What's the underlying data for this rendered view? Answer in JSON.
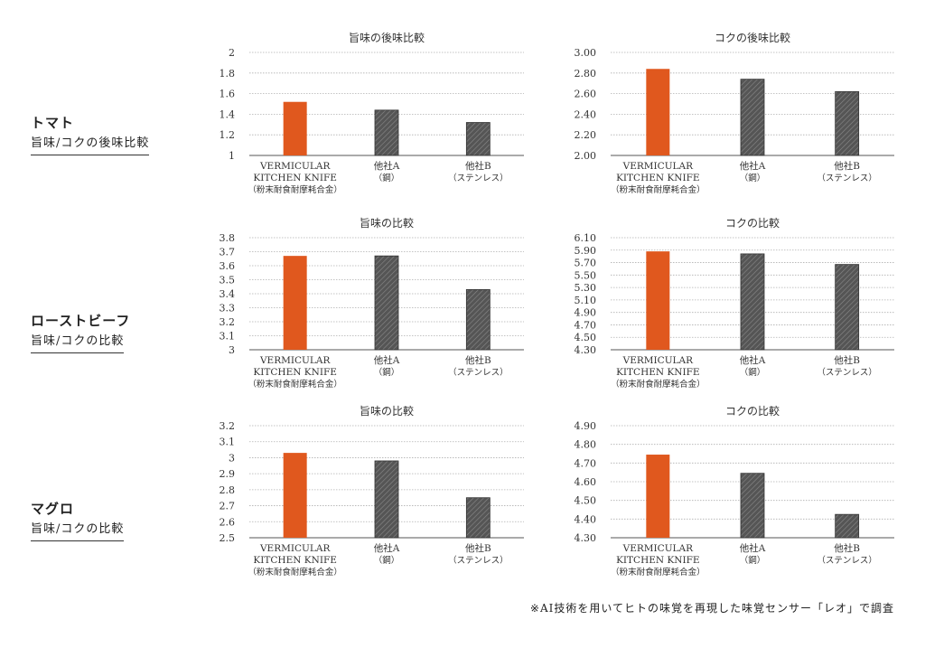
{
  "rows": [
    {
      "food": "トマト",
      "subtitle": "旨味/コクの後味比較"
    },
    {
      "food": "ローストビーフ",
      "subtitle": "旨味/コクの比較"
    },
    {
      "food": "マグロ",
      "subtitle": "旨味/コクの比較"
    }
  ],
  "categories": [
    [
      "VERMICULAR",
      "KITCHEN KNIFE",
      "（粉末耐食耐摩耗合金）"
    ],
    [
      "他社A",
      "（鋼）"
    ],
    [
      "他社B",
      "（ステンレス）"
    ]
  ],
  "colors": {
    "highlight": "#e0581e",
    "competitor": "#555555",
    "grid": "#b0b0b0"
  },
  "chart_data": [
    {
      "type": "bar",
      "title": "旨味の後味比較",
      "ylim": [
        1,
        2
      ],
      "yticks": [
        "1",
        "1.2",
        "1.4",
        "1.6",
        "1.8",
        "2"
      ],
      "values": [
        1.52,
        1.44,
        1.32
      ]
    },
    {
      "type": "bar",
      "title": "コクの後味比較",
      "ylim": [
        2.0,
        3.0
      ],
      "yticks": [
        "2.00",
        "2.20",
        "2.40",
        "2.60",
        "2.80",
        "3.00"
      ],
      "values": [
        2.84,
        2.74,
        2.62
      ]
    },
    {
      "type": "bar",
      "title": "旨味の比較",
      "ylim": [
        3,
        3.8
      ],
      "yticks": [
        "3",
        "3.1",
        "3.2",
        "3.3",
        "3.4",
        "3.5",
        "3.6",
        "3.7",
        "3.8"
      ],
      "values": [
        3.67,
        3.67,
        3.43
      ]
    },
    {
      "type": "bar",
      "title": "コクの比較",
      "ylim": [
        4.3,
        6.1
      ],
      "yticks": [
        "4.30",
        "4.50",
        "4.70",
        "4.90",
        "5.10",
        "5.30",
        "5.50",
        "5.70",
        "5.90",
        "6.10"
      ],
      "values": [
        5.88,
        5.84,
        5.67
      ]
    },
    {
      "type": "bar",
      "title": "旨味の比較",
      "ylim": [
        2.5,
        3.2
      ],
      "yticks": [
        "2.5",
        "2.6",
        "2.7",
        "2.8",
        "2.9",
        "3",
        "3.1",
        "3.2"
      ],
      "values": [
        3.03,
        2.98,
        2.75
      ]
    },
    {
      "type": "bar",
      "title": "コクの比較",
      "ylim": [
        4.3,
        4.9
      ],
      "yticks": [
        "4.30",
        "4.40",
        "4.50",
        "4.60",
        "4.70",
        "4.80",
        "4.90"
      ],
      "values": [
        4.745,
        4.645,
        4.425
      ]
    }
  ],
  "footnote": "※AI技術を用いてヒトの味覚を再現した味覚センサー「レオ」で調査"
}
